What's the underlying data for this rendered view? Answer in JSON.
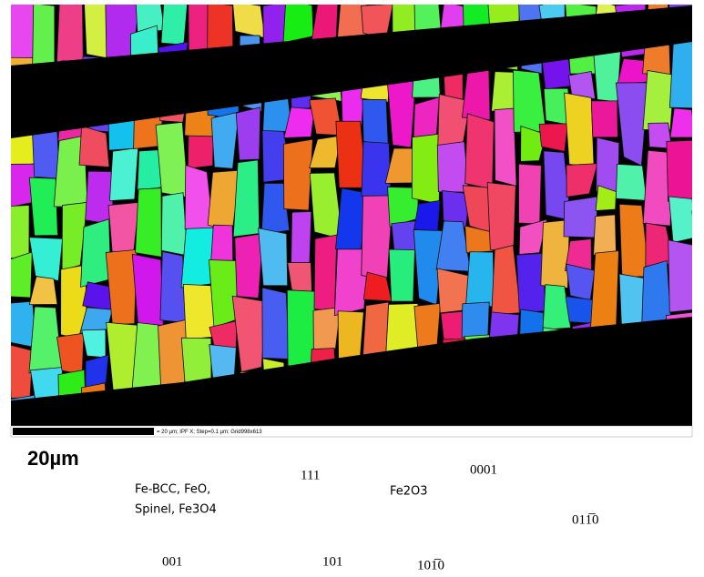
{
  "scale_bar": {
    "label": "20µm",
    "info": "= 20 µm; IPF X; Step=0.1 µm; Grid998x613"
  },
  "legends": [
    {
      "phase_lines": [
        "Fe-BCC, FeO,",
        "Spinel, Fe3O4"
      ],
      "corners": [
        "111",
        "001",
        "101"
      ]
    },
    {
      "phase_lines": [
        "Fe2O3"
      ],
      "corners": [
        "0001",
        "011̅0",
        "101̅0"
      ]
    }
  ]
}
